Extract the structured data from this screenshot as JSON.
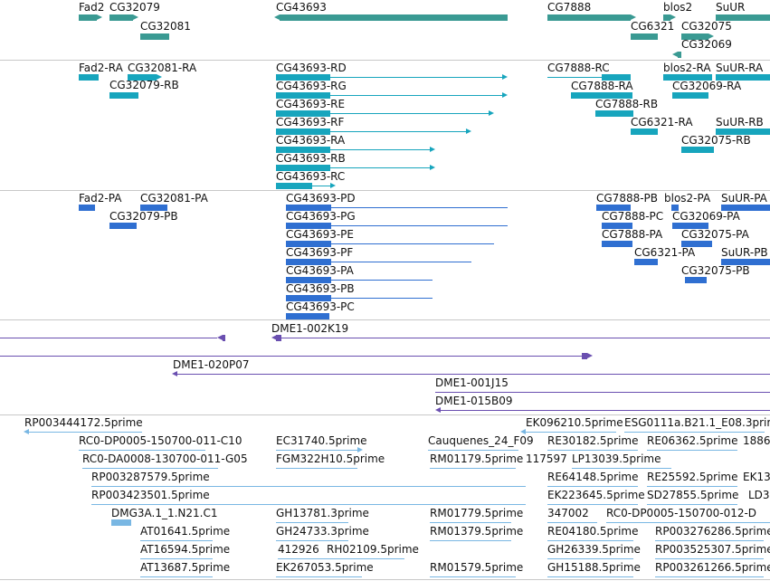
{
  "tracks": {
    "genes": {
      "labels": [
        "Fad2",
        "CG32079",
        "CG32081",
        "CG43693",
        "CG7888",
        "CG6321",
        "blos2",
        "CG32075",
        "CG32069",
        "SuUR"
      ]
    },
    "transcripts_rna": {
      "labels": [
        "Fad2-RA",
        "CG32081-RA",
        "CG32079-RB",
        "CG43693-RD",
        "CG43693-RG",
        "CG43693-RE",
        "CG43693-RF",
        "CG43693-RA",
        "CG43693-RB",
        "CG43693-RC",
        "CG7888-RC",
        "CG7888-RA",
        "CG7888-RB",
        "CG6321-RA",
        "blos2-RA",
        "SuUR-RA",
        "CG32069-RA",
        "SuUR-RB",
        "CG32075-RB"
      ]
    },
    "proteins": {
      "labels": [
        "Fad2-PA",
        "CG32081-PA",
        "CG32079-PB",
        "CG43693-PD",
        "CG43693-PG",
        "CG43693-PE",
        "CG43693-PF",
        "CG43693-PA",
        "CG43693-PB",
        "CG43693-PC",
        "CG7888-PB",
        "blos2-PA",
        "SuUR-PA",
        "CG7888-PC",
        "CG32069-PA",
        "CG7888-PA",
        "CG32075-PA",
        "CG6321-PA",
        "SuUR-PB",
        "CG32075-PB"
      ]
    },
    "clones": {
      "labels": [
        "DME1-002K19",
        "DME1-020P07",
        "DME1-001J15",
        "DME1-015B09"
      ]
    },
    "ests": {
      "labels": [
        "RP003444172.5prime",
        "EK096210.5prime",
        "ESG0111a.B21.1_E08.3prime",
        "RC0-DP0005-150700-011-C10",
        "EC31740.5prime",
        "Cauquenes_24_F09",
        "RE30182.5prime",
        "RE06362.5prime",
        "1886",
        "RC0-DA0008-130700-011-G05",
        "FGM322H10.5prime",
        "RM01179.5prime",
        "117597",
        "LP13039.5prime",
        "RP003287579.5prime",
        "RE64148.5prime",
        "RE25592.5prime",
        "EK13",
        "RP003423501.5prime",
        "EK223645.5prime",
        "SD27855.5prime",
        "LD3",
        "DMG3A.1_1.N21.C1",
        "GH13781.3prime",
        "RM01779.5prime",
        "347002",
        "RC0-DP0005-150700-012-D",
        "AT01641.5prime",
        "GH24733.3prime",
        "RM01379.5prime",
        "RE04180.5prime",
        "RP003276286.5prime",
        "AT16594.5prime",
        "412926",
        "RH02109.5prime",
        "GH26339.5prime",
        "RP003525307.5prime",
        "AT13687.5prime",
        "EK267053.5prime",
        "RM01579.5prime",
        "GH15188.5prime",
        "RP003261266.5prime"
      ]
    }
  },
  "colors": {
    "gene": "#3a9a93",
    "rna": "#17a5bd",
    "protein": "#2f6fd1",
    "clone": "#6a4fb0",
    "est": "#79b7e3",
    "separator": "#c8c8c8"
  }
}
